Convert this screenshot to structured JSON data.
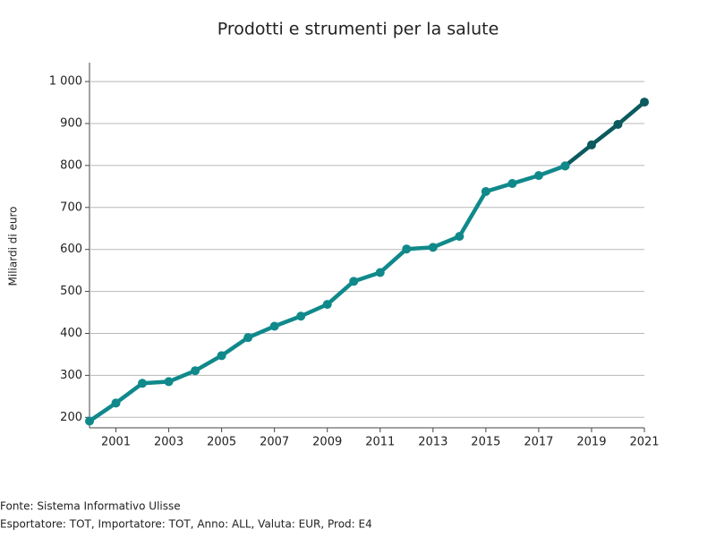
{
  "chart_data": {
    "type": "line",
    "title": "Prodotti e strumenti per la salute",
    "y_label": "Miliardi di euro",
    "x": [
      2000,
      2001,
      2002,
      2003,
      2004,
      2005,
      2006,
      2007,
      2008,
      2009,
      2010,
      2011,
      2012,
      2013,
      2014,
      2015,
      2016,
      2017,
      2018,
      2019,
      2020,
      2021
    ],
    "series": [
      {
        "color": "#10898b",
        "values": [
          191,
          234,
          281,
          285,
          311,
          347,
          390,
          417,
          441,
          469,
          524,
          545,
          601,
          605,
          631,
          738,
          757,
          776,
          799,
          null,
          null,
          null
        ]
      },
      {
        "color": "#0b5a5e",
        "values": [
          null,
          null,
          null,
          null,
          null,
          null,
          null,
          null,
          null,
          null,
          null,
          null,
          null,
          null,
          null,
          null,
          null,
          null,
          799,
          849,
          898,
          951
        ]
      }
    ],
    "xlim": [
      2000,
      2021
    ],
    "xticks": [
      2001,
      2003,
      2005,
      2007,
      2009,
      2011,
      2013,
      2015,
      2017,
      2019,
      2021
    ],
    "ylim": [
      175,
      1045
    ],
    "yticks": [
      200,
      300,
      400,
      500,
      600,
      700,
      800,
      900,
      {
        "value": 1000,
        "label": "1 000"
      }
    ],
    "grid": true
  },
  "footer": [
    "Fonte: Sistema Informativo Ulisse",
    "Esportatore: TOT, Importatore: TOT, Anno: ALL, Valuta: EUR, Prod: E4"
  ]
}
